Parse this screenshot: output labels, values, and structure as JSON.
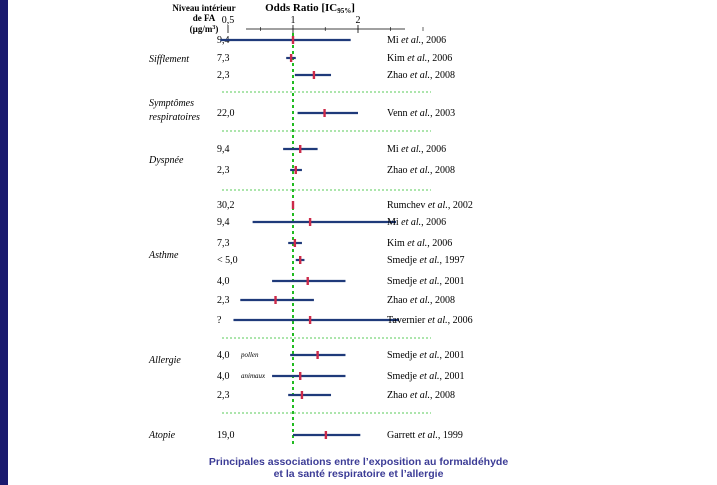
{
  "header": {
    "col_label_line1": "Niveau intérieur",
    "col_label_line2": "de FA",
    "col_label_line3": "(µg/m",
    "col_label_sup": "3",
    "col_label_close": ")",
    "axis_title": "Odds Ratio [IC",
    "axis_title_sub": "95%",
    "axis_title_close": "]"
  },
  "caption": {
    "line1": "Principales associations entre l’exposition au formaldéhyde",
    "line2": "et la santé respiratoire et l’allergie"
  },
  "colors": {
    "ci_line": "#1f3a7a",
    "point": "#cc2a4a",
    "reference": "#22bb22",
    "separator": "#22bb22",
    "border": "#1a1a6e"
  },
  "chart_data": {
    "type": "forest",
    "x_scale": "log",
    "x_ticks": [
      {
        "value": 0.5,
        "label": "0,5"
      },
      {
        "value": 1,
        "label": "1"
      },
      {
        "value": 2,
        "label": "2"
      }
    ],
    "x_minor_ticks": [
      0.707,
      1.41,
      2.83,
      4
    ],
    "reference_value": 1,
    "groups": [
      {
        "category": "Sifflement",
        "rows": [
          {
            "level": "9,4",
            "ref_prefix": "Mi",
            "ref_etal": "et al.",
            "ref_year": ", 2006",
            "or": 1.0,
            "lo": 0.46,
            "hi": 1.85
          },
          {
            "level": "7,3",
            "ref_prefix": "Kim",
            "ref_etal": "et al.",
            "ref_year": ", 2006",
            "or": 0.98,
            "lo": 0.93,
            "hi": 1.03
          },
          {
            "level": "2,3",
            "ref_prefix": "Zhao",
            "ref_etal": "et al.",
            "ref_year": ", 2008",
            "or": 1.25,
            "lo": 1.02,
            "hi": 1.5
          }
        ]
      },
      {
        "category": "Symptômes respiratoires",
        "category_line1": "Symptômes",
        "category_line2": "respiratoires",
        "rows": [
          {
            "level": "22,0",
            "ref_prefix": "Venn",
            "ref_etal": "et al.",
            "ref_year": ", 2003",
            "or": 1.4,
            "lo": 1.05,
            "hi": 2.0
          }
        ]
      },
      {
        "category": "Dyspnée",
        "rows": [
          {
            "level": "9,4",
            "ref_prefix": "Mi",
            "ref_etal": "et al.",
            "ref_year": ", 2006",
            "or": 1.08,
            "lo": 0.9,
            "hi": 1.3
          },
          {
            "level": "2,3",
            "ref_prefix": "Zhao",
            "ref_etal": "et al.",
            "ref_year": ", 2008",
            "or": 1.03,
            "lo": 0.97,
            "hi": 1.1
          }
        ]
      },
      {
        "category": "Asthme",
        "rows": [
          {
            "level": "30,2",
            "ref_prefix": "Rumchev",
            "ref_etal": "et al.",
            "ref_year": ", 2002",
            "or": 1.0,
            "lo": 0.99,
            "hi": 1.01
          },
          {
            "level": "9,4",
            "ref_prefix": "Mi",
            "ref_etal": "et al.",
            "ref_year": ", 2006",
            "or": 1.2,
            "lo": 0.65,
            "hi": 3.0
          },
          {
            "level": "7,3",
            "ref_prefix": "Kim",
            "ref_etal": "et al.",
            "ref_year": ", 2006",
            "or": 1.02,
            "lo": 0.95,
            "hi": 1.1
          },
          {
            "level": "< 5,0",
            "ref_prefix": "Smedje",
            "ref_etal": "et al.",
            "ref_year": ", 1997",
            "or": 1.08,
            "lo": 1.03,
            "hi": 1.13
          },
          {
            "level": "4,0",
            "ref_prefix": "Smedje",
            "ref_etal": "et al.",
            "ref_year": ", 2001",
            "or": 1.17,
            "lo": 0.8,
            "hi": 1.75
          },
          {
            "level": "2,3",
            "ref_prefix": "Zhao",
            "ref_etal": "et al.",
            "ref_year": ", 2008",
            "or": 0.83,
            "lo": 0.57,
            "hi": 1.25
          },
          {
            "level": "?",
            "ref_prefix": "Tavernier",
            "ref_etal": "et al.",
            "ref_year": ", 2006",
            "or": 1.2,
            "lo": 0.53,
            "hi": 3.1
          }
        ]
      },
      {
        "category": "Allergie",
        "rows": [
          {
            "level": "4,0",
            "level_note": "pollen",
            "ref_prefix": "Smedje",
            "ref_etal": "et al.",
            "ref_year": ", 2001",
            "or": 1.3,
            "lo": 0.97,
            "hi": 1.75
          },
          {
            "level": "4,0",
            "level_note": "animaux",
            "ref_prefix": "Smedje",
            "ref_etal": "et al.",
            "ref_year": ", 2001",
            "or": 1.08,
            "lo": 0.8,
            "hi": 1.75
          },
          {
            "level": "2,3",
            "ref_prefix": "Zhao",
            "ref_etal": "et al.",
            "ref_year": ", 2008",
            "or": 1.1,
            "lo": 0.95,
            "hi": 1.5
          }
        ]
      },
      {
        "category": "Atopie",
        "rows": [
          {
            "level": "19,0",
            "ref_prefix": "Garrett",
            "ref_etal": "et al.",
            "ref_year": ", 1999",
            "or": 1.42,
            "lo": 1.0,
            "hi": 2.05
          }
        ]
      }
    ]
  }
}
